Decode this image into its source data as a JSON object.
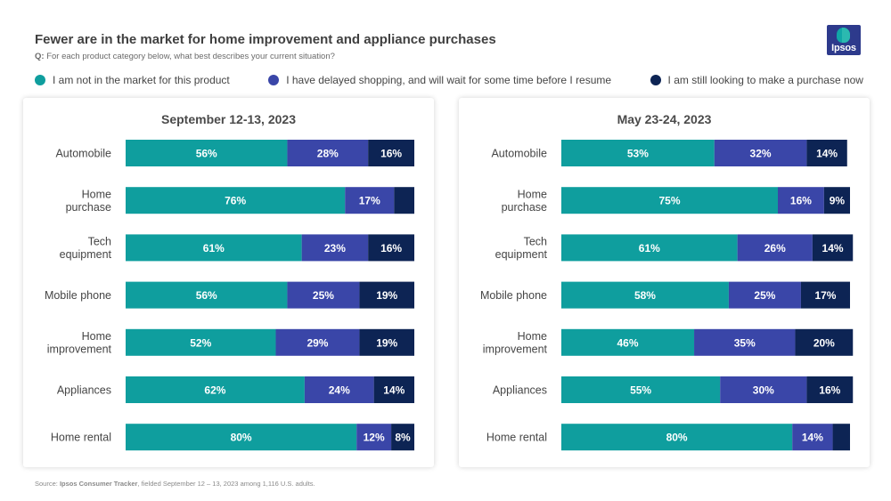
{
  "title": "Fewer are in the market for home improvement and appliance purchases",
  "subtitle_q": "Q:",
  "subtitle_text": "For each product category below, what best describes your current situation?",
  "logo_text": "Ipsos",
  "colors": {
    "not_in_market": "#0f9e9e",
    "delayed": "#3a46a8",
    "looking": "#0d2454"
  },
  "legend": [
    {
      "label": "I am not in the market for this product",
      "color": "#0f9e9e"
    },
    {
      "label": "I have delayed shopping, and will wait for some time before I resume",
      "color": "#3a46a8"
    },
    {
      "label": "I am still looking to make a purchase now",
      "color": "#0d2454"
    }
  ],
  "chart_data": [
    {
      "type": "bar",
      "orientation": "horizontal",
      "stacked": true,
      "title": "September 12-13, 2023",
      "categories": [
        [
          "Automobile"
        ],
        [
          "Home",
          "purchase"
        ],
        [
          "Tech",
          "equipment"
        ],
        [
          "Mobile phone"
        ],
        [
          "Home",
          "improvement"
        ],
        [
          "Appliances"
        ],
        [
          "Home rental"
        ]
      ],
      "xlim": [
        0,
        100
      ],
      "series": [
        {
          "name": "I am not in the market for this product",
          "values": [
            56,
            76,
            61,
            56,
            52,
            62,
            80
          ],
          "labels": [
            "56%",
            "76%",
            "61%",
            "56%",
            "52%",
            "62%",
            "80%"
          ]
        },
        {
          "name": "I have delayed shopping, and will wait for some time before I resume",
          "values": [
            28,
            17,
            23,
            25,
            29,
            24,
            12
          ],
          "labels": [
            "28%",
            "17%",
            "23%",
            "25%",
            "29%",
            "24%",
            "12%"
          ]
        },
        {
          "name": "I am still looking to make a purchase now",
          "values": [
            16,
            7,
            16,
            19,
            19,
            14,
            8
          ],
          "labels": [
            "16%",
            "",
            "16%",
            "19%",
            "19%",
            "14%",
            "8%"
          ]
        }
      ]
    },
    {
      "type": "bar",
      "orientation": "horizontal",
      "stacked": true,
      "title": "May 23-24, 2023",
      "categories": [
        [
          "Automobile"
        ],
        [
          "Home",
          "purchase"
        ],
        [
          "Tech",
          "equipment"
        ],
        [
          "Mobile phone"
        ],
        [
          "Home",
          "improvement"
        ],
        [
          "Appliances"
        ],
        [
          "Home rental"
        ]
      ],
      "xlim": [
        0,
        100
      ],
      "series": [
        {
          "name": "I am not in the market for this product",
          "values": [
            53,
            75,
            61,
            58,
            46,
            55,
            80
          ],
          "labels": [
            "53%",
            "75%",
            "61%",
            "58%",
            "46%",
            "55%",
            "80%"
          ]
        },
        {
          "name": "I have delayed shopping, and will wait for some time before I resume",
          "values": [
            32,
            16,
            26,
            25,
            35,
            30,
            14
          ],
          "labels": [
            "32%",
            "16%",
            "26%",
            "25%",
            "35%",
            "30%",
            "14%"
          ]
        },
        {
          "name": "I am still looking to make a purchase now",
          "values": [
            14,
            9,
            14,
            17,
            20,
            16,
            6
          ],
          "labels": [
            "14%",
            "9%",
            "14%",
            "17%",
            "20%",
            "16%",
            ""
          ]
        }
      ]
    }
  ],
  "source_prefix": "Source: ",
  "source_brand": "Ipsos Consumer Tracker",
  "source_rest": ", fielded September 12 – 13, 2023 among 1,116 U.S. adults."
}
